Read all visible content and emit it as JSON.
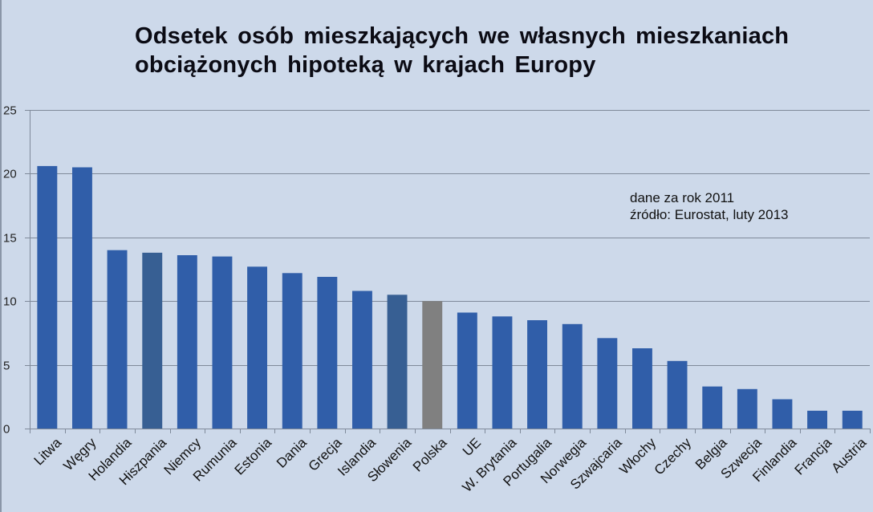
{
  "chart_data": {
    "type": "bar",
    "title": "Odsetek osób mieszkających we własnych mieszkaniach obciążonych hipoteką w krajach Europy",
    "title_lines": [
      "Odsetek osób mieszkających we własnych mieszkaniach",
      "obciążonych hipoteką w krajach Europy"
    ],
    "annotation_lines": [
      "dane za rok 2011",
      "źródło: Eurostat, luty 2013"
    ],
    "xlabel": "",
    "ylabel": "",
    "ylim": [
      0,
      25
    ],
    "yticks": [
      0,
      5,
      10,
      15,
      20,
      25
    ],
    "grid": true,
    "legend": null,
    "categories": [
      "Litwa",
      "Węgry",
      "Holandia",
      "Hiszpania",
      "Niemcy",
      "Rumunia",
      "Estonia",
      "Dania",
      "Grecja",
      "Islandia",
      "Słowenia",
      "Polska",
      "UE",
      "W. Brytania",
      "Portugalia",
      "Norwegia",
      "Szwajcaria",
      "Włochy",
      "Czechy",
      "Belgia",
      "Szwecja",
      "Finlandia",
      "Francja",
      "Austria"
    ],
    "values": [
      20.6,
      20.5,
      14.0,
      13.8,
      13.6,
      13.5,
      12.7,
      12.2,
      11.9,
      10.8,
      10.5,
      10.0,
      9.1,
      8.8,
      8.5,
      8.2,
      7.1,
      6.3,
      5.3,
      3.3,
      3.1,
      2.3,
      1.4,
      1.4
    ],
    "bar_colors": [
      "#305ea9",
      "#305ea9",
      "#305ea9",
      "#375f93",
      "#305ea9",
      "#305ea9",
      "#305ea9",
      "#305ea9",
      "#305ea9",
      "#305ea9",
      "#375f93",
      "#808080",
      "#305ea9",
      "#305ea9",
      "#305ea9",
      "#305ea9",
      "#305ea9",
      "#305ea9",
      "#305ea9",
      "#305ea9",
      "#305ea9",
      "#305ea9",
      "#305ea9",
      "#305ea9"
    ]
  },
  "colors": {
    "background": "#cdd9ea",
    "bar": "#305ea9",
    "bar_highlight_dark": "#375f93",
    "bar_polska": "#808080",
    "gridline": "#7f8a9a",
    "text": "#111111"
  }
}
